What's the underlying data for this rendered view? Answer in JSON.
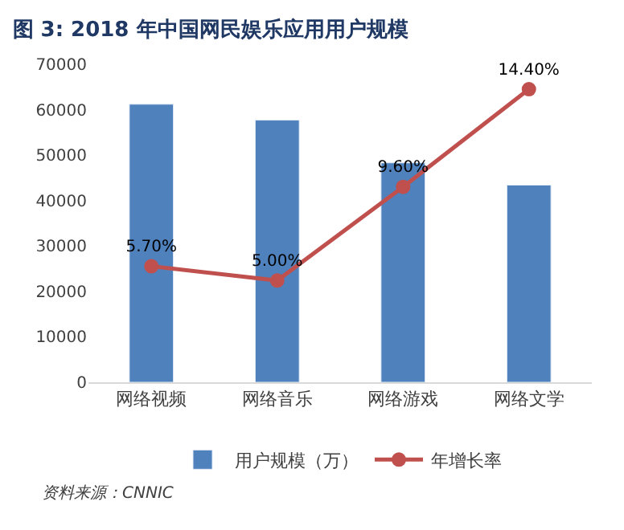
{
  "chart_data": {
    "type": "bar",
    "title": "图 3: 2018 年中国网民娱乐应用用户规模",
    "categories": [
      "网络视频",
      "网络音乐",
      "网络游戏",
      "网络文学"
    ],
    "series": [
      {
        "name": "用户规模（万）",
        "color": "#4f81bd",
        "values": [
          61200,
          57700,
          48300,
          43400
        ]
      },
      {
        "name": "年增长率",
        "type": "line",
        "axis": "y2",
        "color": "#c0504d",
        "values": [
          5.7,
          5.0,
          9.6,
          14.4
        ],
        "value_labels": [
          "5.70%",
          "5.00%",
          "9.60%",
          "14.40%"
        ],
        "marker": "circle"
      }
    ],
    "ylim": [
      0,
      70000
    ],
    "yticks": [
      0,
      10000,
      20000,
      30000,
      40000,
      50000,
      60000,
      70000
    ],
    "legend": "bottom",
    "annotations": [
      "资料来源：CNNIC"
    ]
  }
}
